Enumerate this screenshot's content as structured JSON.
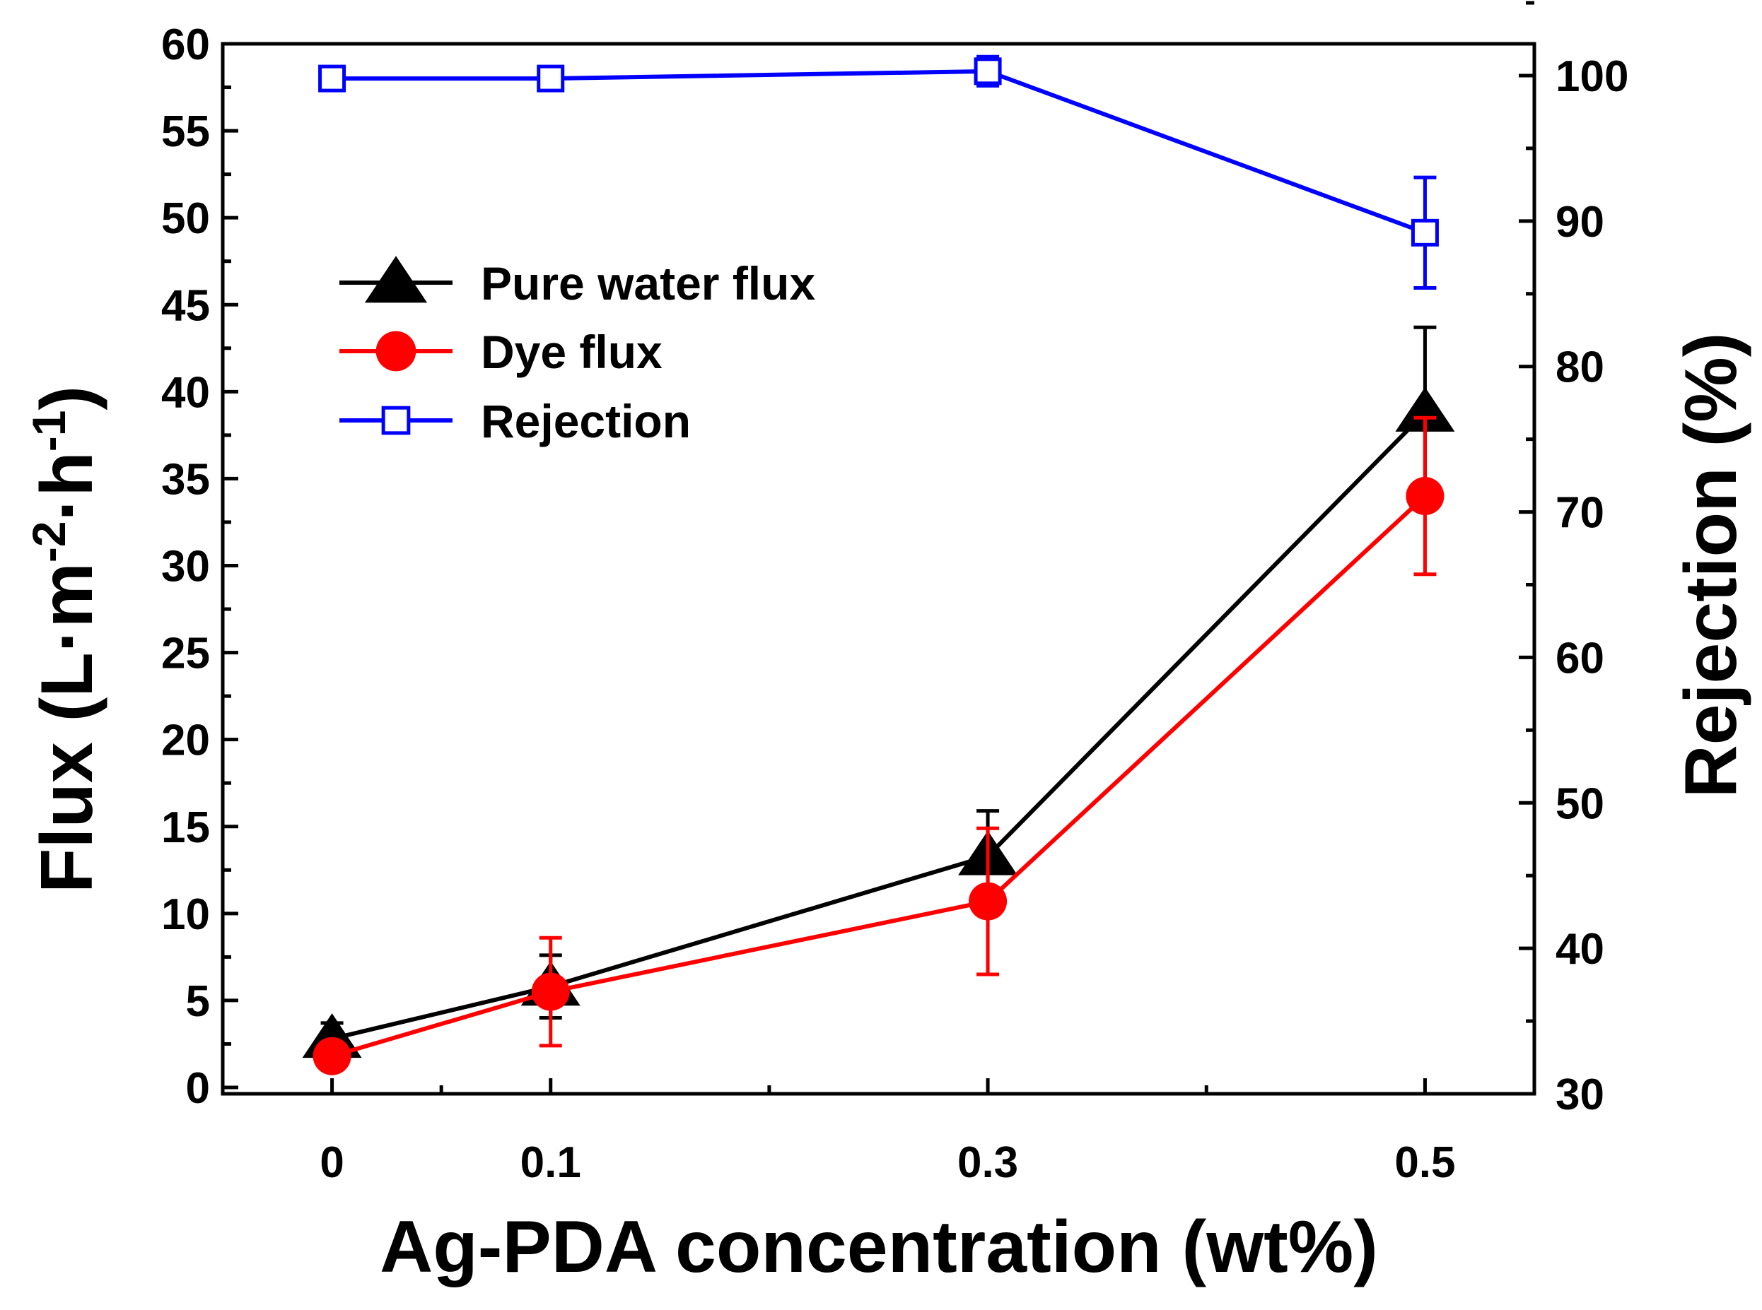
{
  "chart_data": {
    "type": "line",
    "x": [
      "0",
      "0.1",
      "0.3",
      "0.5"
    ],
    "x_values": [
      0,
      0.1,
      0.3,
      0.5
    ],
    "xlim": [
      -0.05,
      0.55
    ],
    "xlabel": "Ag-PDA concentration (wt%)",
    "ylabel_left": {
      "main": "Flux (L·m",
      "sup1": "-2",
      "mid": "·h",
      "sup2": "-1",
      "end": ")"
    },
    "ylabel_right": "Rejection (%)",
    "ylim_left": [
      0,
      60
    ],
    "ylim_right": [
      30,
      100
    ],
    "yticks_left": [
      0,
      5,
      10,
      15,
      20,
      25,
      30,
      35,
      40,
      45,
      50,
      55,
      60
    ],
    "yticks_right": [
      30,
      40,
      50,
      60,
      70,
      80,
      90,
      100
    ],
    "series": [
      {
        "name": "Pure water flux",
        "axis": "left",
        "color": "#000000",
        "marker": "filled-triangle",
        "values": [
          2.8,
          5.8,
          13.3,
          38.8
        ],
        "errors": [
          0.9,
          1.8,
          2.6,
          4.9
        ]
      },
      {
        "name": "Dye flux",
        "axis": "left",
        "color": "#ff0000",
        "marker": "filled-circle",
        "values": [
          1.8,
          5.5,
          10.7,
          34.0
        ],
        "errors": [
          0.4,
          3.1,
          4.2,
          4.5
        ]
      },
      {
        "name": "Rejection",
        "axis": "right",
        "color": "#0000ff",
        "marker": "open-square",
        "values": [
          99.8,
          99.8,
          100.3,
          89.2
        ],
        "errors": [
          0.3,
          0.7,
          1.0,
          3.8
        ]
      }
    ],
    "legend_position": "upper-left"
  }
}
